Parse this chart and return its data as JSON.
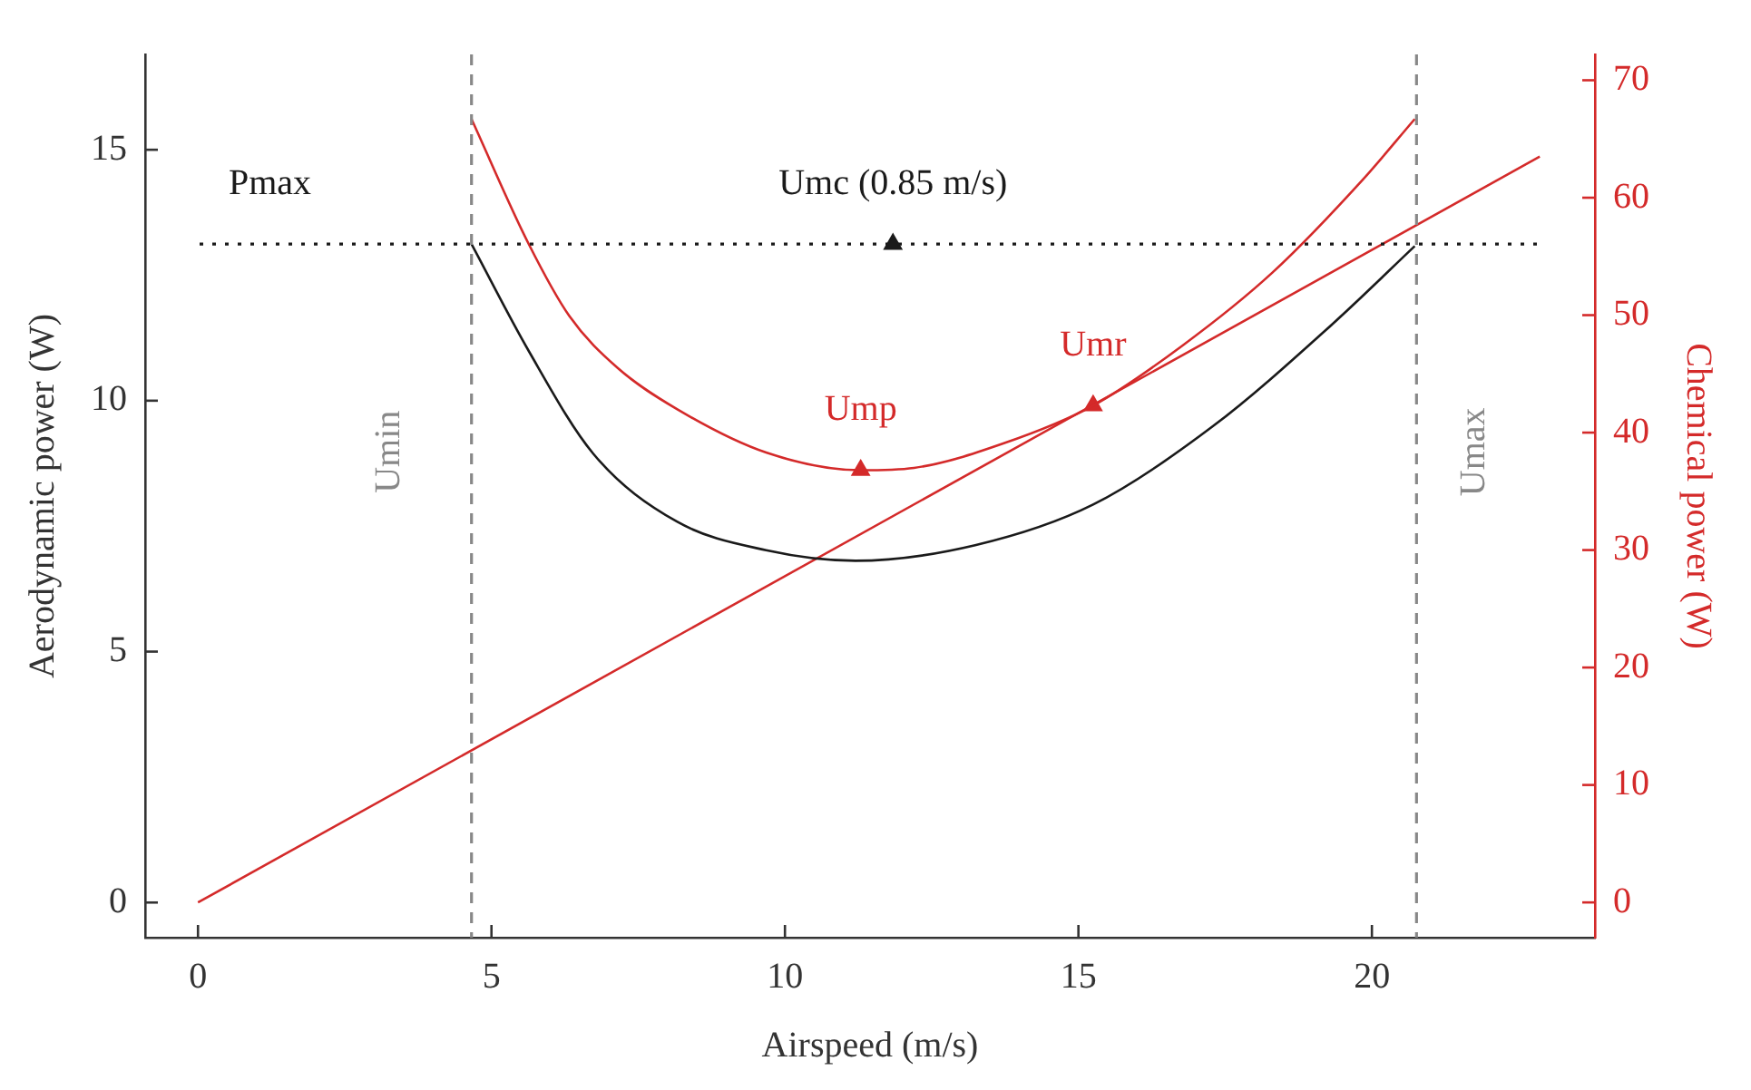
{
  "chart_data": {
    "type": "line",
    "xlabel": "Airspeed (m/s)",
    "ylabel": "Aerodynamic power (W)",
    "y2label": "Chemical power (W)",
    "xlim": [
      -0.9,
      23.8
    ],
    "xticks": [
      0,
      5,
      10,
      15,
      20
    ],
    "ylim": [
      -0.7,
      16.9
    ],
    "yticks": [
      0,
      5,
      10,
      15
    ],
    "y2lim": [
      -3.0,
      72.2
    ],
    "y2ticks": [
      0,
      10,
      20,
      30,
      40,
      50,
      60,
      70
    ],
    "grid": false,
    "legend": false,
    "series": [
      {
        "color": "#1a1a1a",
        "marker": "none",
        "x": [
          4.66,
          5.63,
          6.73,
          8.16,
          9.68,
          11.2,
          13.24,
          15.25,
          17.29,
          19.33,
          20.73
        ],
        "values": [
          13.12,
          11.0,
          8.95,
          7.59,
          7.02,
          6.81,
          7.12,
          7.93,
          9.49,
          11.53,
          13.08
        ]
      },
      {
        "axis": "y2",
        "color": "#d42a2a",
        "marker": "none",
        "x": [
          4.66,
          5.63,
          6.33,
          7.15,
          8.16,
          9.68,
          11.29,
          12.2,
          13.73,
          15.25,
          16.77,
          18.3,
          19.82,
          20.73
        ],
        "values": [
          66.7,
          56.1,
          49.9,
          45.5,
          42.0,
          38.3,
          36.8,
          37.0,
          39.1,
          42.3,
          47.4,
          53.6,
          61.4,
          66.7
        ]
      },
      {
        "axis": "y2",
        "color": "#d42a2a",
        "marker": "none",
        "x": [
          0,
          22.86
        ],
        "values": [
          0,
          63.5
        ]
      },
      {
        "type": "scatter",
        "name": "Umc (0.85 m/s)",
        "color": "#1a1a1a",
        "marker": "triangle",
        "x": [
          11.84
        ],
        "values": [
          13.12
        ]
      },
      {
        "type": "scatter",
        "name": "Ump",
        "axis": "y2",
        "color": "#d42a2a",
        "marker": "triangle",
        "x": [
          11.29
        ],
        "values": [
          36.8
        ]
      },
      {
        "type": "scatter",
        "name": "Umr",
        "axis": "y2",
        "color": "#d42a2a",
        "marker": "triangle",
        "x": [
          15.25
        ],
        "values": [
          42.3
        ]
      }
    ],
    "ref_lines": [
      {
        "axis": "y",
        "value": 13.12,
        "label": "Pmax",
        "color": "#1a1a1a",
        "line_style": "dotted"
      },
      {
        "axis": "x",
        "value": 4.66,
        "label": "Umin",
        "color": "#888888",
        "line_style": "dashed"
      },
      {
        "axis": "x",
        "value": 20.76,
        "label": "Umax",
        "color": "#888888",
        "line_style": "dashed"
      }
    ]
  }
}
